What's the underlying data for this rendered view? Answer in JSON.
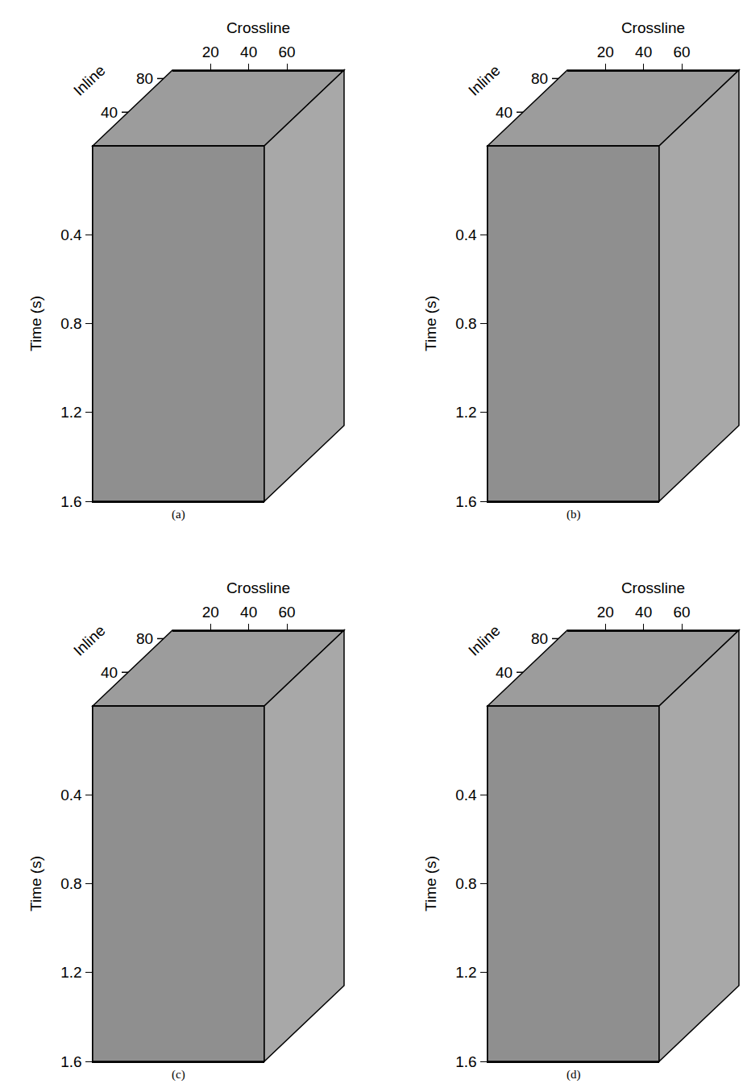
{
  "chart_data": [
    {
      "type": "cube",
      "title": "(a)",
      "xlabel": "Crossline",
      "ylabel": "Time (s)",
      "zlabel": "Inline",
      "xlim": [
        0,
        90
      ],
      "xticks": [
        20,
        40,
        60
      ],
      "ylim": [
        0,
        1.6
      ],
      "yticks": [
        0.4,
        0.8,
        1.2,
        1.6
      ],
      "zlim": [
        0,
        90
      ],
      "zticks": [
        40,
        80
      ]
    },
    {
      "type": "cube",
      "title": "(b)",
      "xlabel": "Crossline",
      "ylabel": "Time (s)",
      "zlabel": "Inline",
      "xlim": [
        0,
        90
      ],
      "xticks": [
        20,
        40,
        60
      ],
      "ylim": [
        0,
        1.6
      ],
      "yticks": [
        0.4,
        0.8,
        1.2,
        1.6
      ],
      "zlim": [
        0,
        90
      ],
      "zticks": [
        40,
        80
      ]
    },
    {
      "type": "cube",
      "title": "(c)",
      "xlabel": "Crossline",
      "ylabel": "Time (s)",
      "zlabel": "Inline",
      "xlim": [
        0,
        90
      ],
      "xticks": [
        20,
        40,
        60
      ],
      "ylim": [
        0,
        1.6
      ],
      "yticks": [
        0.4,
        0.8,
        1.2,
        1.6
      ],
      "zlim": [
        0,
        90
      ],
      "zticks": [
        40,
        80
      ]
    },
    {
      "type": "cube",
      "title": "(d)",
      "xlabel": "Crossline",
      "ylabel": "Time (s)",
      "zlabel": "Inline",
      "xlim": [
        0,
        90
      ],
      "xticks": [
        20,
        40,
        60
      ],
      "ylim": [
        0,
        1.6
      ],
      "yticks": [
        0.4,
        0.8,
        1.2,
        1.6
      ],
      "zlim": [
        0,
        90
      ],
      "zticks": [
        40,
        80
      ]
    }
  ]
}
